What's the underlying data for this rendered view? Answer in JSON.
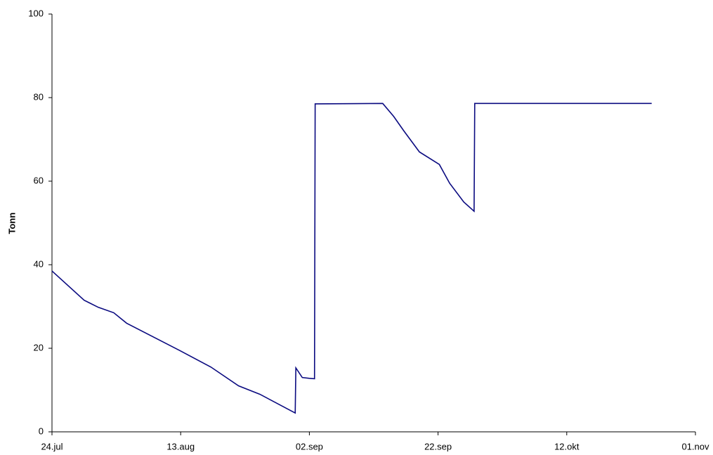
{
  "chart_data": {
    "type": "line",
    "y_label": "Tonn",
    "x": [
      0,
      5.0,
      7.2,
      9.6,
      11.6,
      19.8,
      24.7,
      29.0,
      32.3,
      37.8,
      37.9,
      38.9,
      40.0,
      40.8,
      40.9,
      51.4,
      53.1,
      54.7,
      57.1,
      60.2,
      61.8,
      64.0,
      65.6,
      65.7,
      93.2
    ],
    "series": [
      {
        "name": "Tonn",
        "color": "#0a0a80",
        "values": [
          38.5,
          31.5,
          29.8,
          28.5,
          26,
          19.5,
          15.5,
          11,
          9,
          4.5,
          15.3,
          13,
          12.8,
          12.7,
          78.5,
          78.6,
          75.5,
          72,
          67,
          64,
          59.5,
          55,
          52.8,
          78.6,
          78.6
        ]
      }
    ],
    "xlim": [
      0,
      100
    ],
    "xticks": [
      {
        "value": 0,
        "label": "24.jul"
      },
      {
        "value": 20,
        "label": "13.aug"
      },
      {
        "value": 40,
        "label": "02.sep"
      },
      {
        "value": 60,
        "label": "22.sep"
      },
      {
        "value": 80,
        "label": "12.okt"
      },
      {
        "value": 100,
        "label": "01.nov"
      }
    ],
    "ylim": [
      0,
      100
    ],
    "yticks": [
      0,
      20,
      40,
      60,
      80,
      100
    ],
    "grid": false
  }
}
